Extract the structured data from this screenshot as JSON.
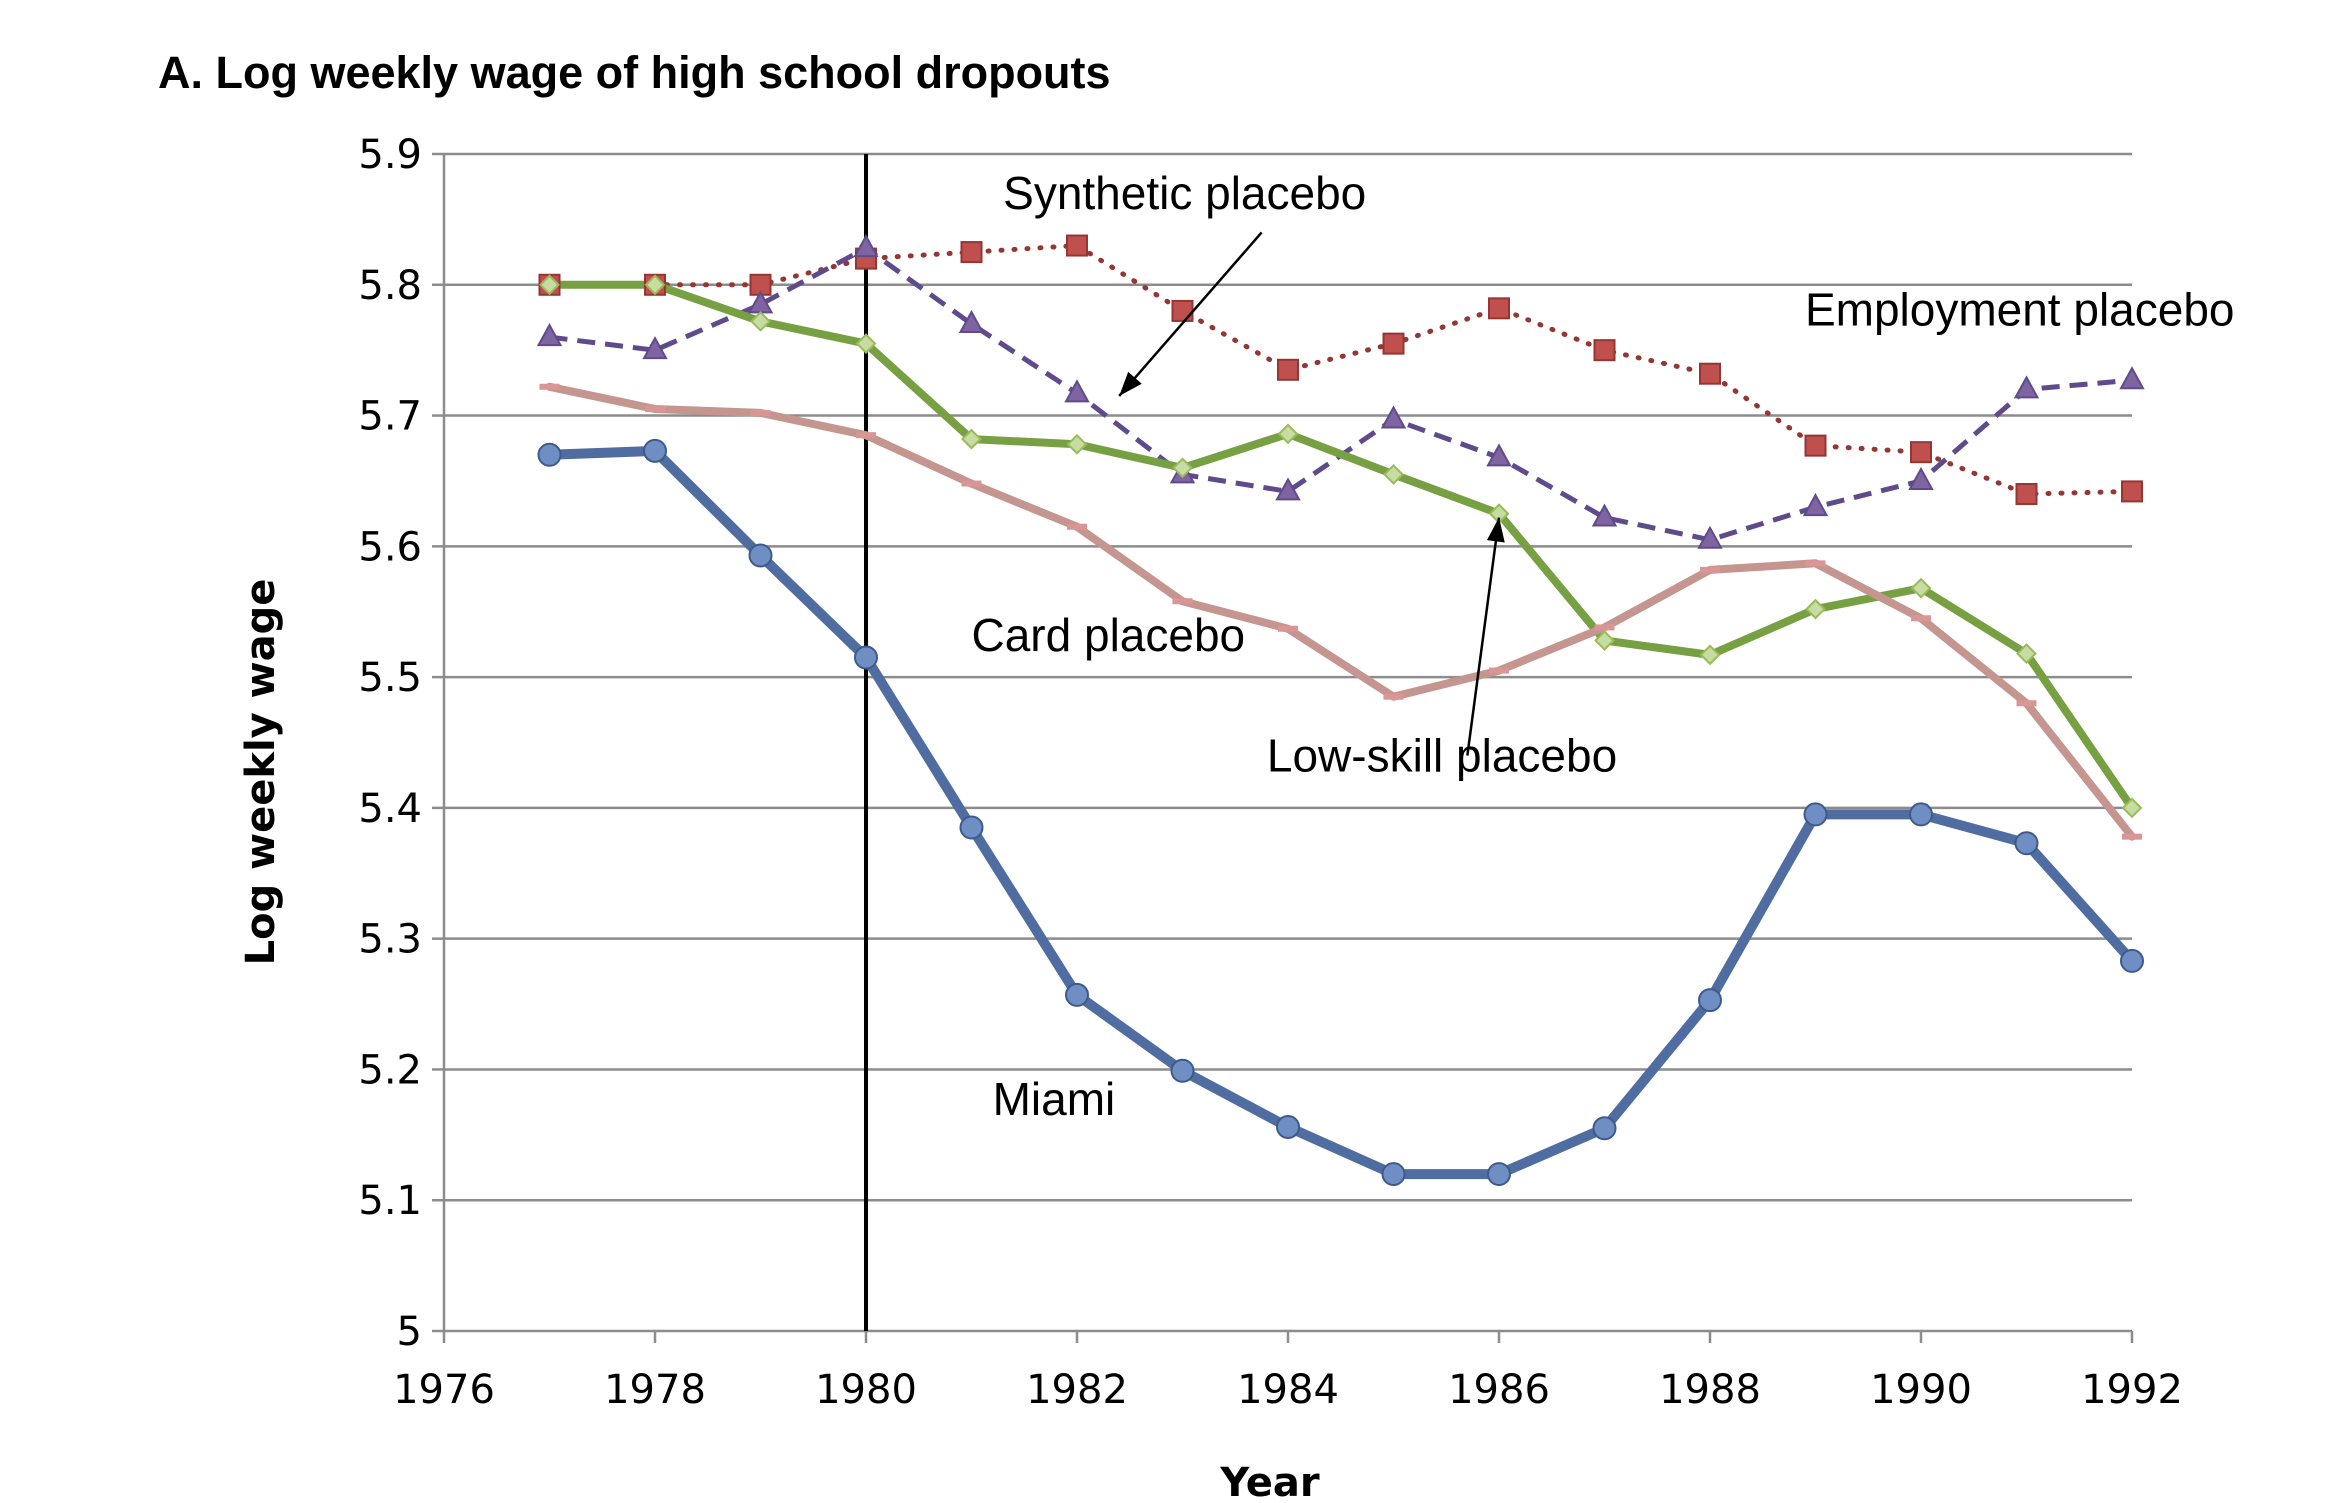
{
  "chart_data": {
    "type": "line",
    "title": "A. Log weekly wage of high school dropouts",
    "xlabel": "Year",
    "ylabel": "Log weekly wage",
    "xlim": [
      1976,
      1992
    ],
    "ylim": [
      5.0,
      5.9
    ],
    "xticks": [
      1976,
      1978,
      1980,
      1982,
      1984,
      1986,
      1988,
      1990,
      1992
    ],
    "yticks": [
      5.0,
      5.1,
      5.2,
      5.3,
      5.4,
      5.5,
      5.6,
      5.7,
      5.8,
      5.9
    ],
    "ytick_labels": [
      "5",
      "5.1",
      "5.2",
      "5.3",
      "5.4",
      "5.5",
      "5.6",
      "5.7",
      "5.8",
      "5.9"
    ],
    "grid": "horizontal",
    "vertical_line_x": 1980,
    "x": [
      1977,
      1978,
      1979,
      1980,
      1981,
      1982,
      1983,
      1984,
      1985,
      1986,
      1987,
      1988,
      1989,
      1990,
      1991,
      1992
    ],
    "series": [
      {
        "name": "Employment placebo",
        "color": "#943634",
        "marker_color": "#c0504d",
        "style": "dotted",
        "marker": "square",
        "values": [
          5.8,
          5.8,
          5.8,
          5.82,
          5.825,
          5.83,
          5.78,
          5.735,
          5.755,
          5.782,
          5.75,
          5.732,
          5.677,
          5.672,
          5.64,
          5.642
        ]
      },
      {
        "name": "Synthetic placebo",
        "color": "#5f4b8b",
        "marker_color": "#8064a2",
        "style": "dashed",
        "marker": "triangle",
        "values": [
          5.76,
          5.75,
          5.785,
          5.828,
          5.77,
          5.717,
          5.655,
          5.642,
          5.697,
          5.668,
          5.622,
          5.605,
          5.63,
          5.65,
          5.72,
          5.727
        ]
      },
      {
        "name": "Low-skill placebo",
        "color": "#77a042",
        "marker_color": "#9bbb59",
        "style": "solid",
        "marker": "diamond",
        "values": [
          5.8,
          5.8,
          5.772,
          5.755,
          5.682,
          5.678,
          5.66,
          5.686,
          5.655,
          5.625,
          5.528,
          5.517,
          5.552,
          5.568,
          5.518,
          5.4
        ]
      },
      {
        "name": "Card placebo",
        "color": "#c59590",
        "marker_color": "#d99694",
        "style": "solid",
        "marker": "dash",
        "values": [
          5.722,
          5.705,
          5.702,
          5.685,
          5.648,
          5.615,
          5.558,
          5.537,
          5.485,
          5.505,
          5.538,
          5.582,
          5.587,
          5.545,
          5.48,
          5.378
        ]
      },
      {
        "name": "Miami",
        "color": "#4f6da0",
        "marker_color": "#6f8fc4",
        "style": "solid",
        "marker": "circle",
        "values": [
          5.67,
          5.673,
          5.593,
          5.515,
          5.385,
          5.257,
          5.199,
          5.156,
          5.12,
          5.12,
          5.155,
          5.253,
          5.395,
          5.395,
          5.373,
          5.283
        ]
      }
    ],
    "annotations": [
      {
        "text": "Synthetic placebo",
        "x": 1981.3,
        "y": 5.858,
        "anchor": "start"
      },
      {
        "text": "Employment placebo",
        "x": 1988.9,
        "y": 5.769,
        "anchor": "start"
      },
      {
        "text": "Card placebo",
        "x": 1981.0,
        "y": 5.52,
        "anchor": "start"
      },
      {
        "text": "Low-skill placebo",
        "x": 1983.8,
        "y": 5.428,
        "anchor": "start"
      },
      {
        "text": "Miami",
        "x": 1981.2,
        "y": 5.165,
        "anchor": "start"
      }
    ],
    "arrows": [
      {
        "from": [
          1983.75,
          5.84
        ],
        "to": [
          1982.4,
          5.715
        ]
      },
      {
        "from": [
          1985.7,
          5.44
        ],
        "to": [
          1986.0,
          5.622
        ]
      }
    ]
  }
}
